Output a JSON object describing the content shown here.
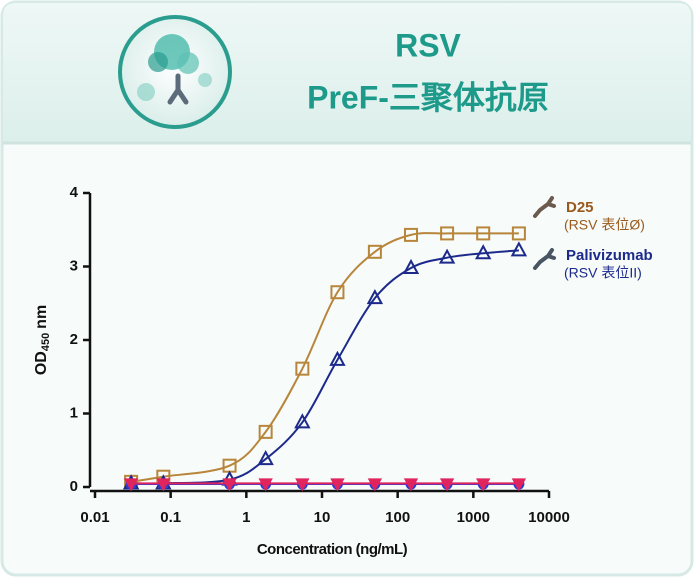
{
  "header": {
    "title": "RSV",
    "subtitle": "PreF-三聚体抗原"
  },
  "chart_data": {
    "type": "line",
    "xscale": "log",
    "x_label": "Concentration (ng/mL)",
    "y_label": {
      "main": "OD",
      "sub": "450",
      "unit": "nm"
    },
    "x": [
      0.03,
      0.08,
      0.6,
      1.8,
      5.5,
      16,
      50,
      150,
      450,
      1350,
      4000
    ],
    "xlim": [
      0.01,
      10000
    ],
    "xticks": [
      0.01,
      0.1,
      1,
      10,
      100,
      1000,
      10000
    ],
    "ylim": [
      0,
      4
    ],
    "yticks": [
      0,
      1,
      2,
      3,
      4
    ],
    "series": [
      {
        "name": "D25",
        "note": "(RSV 表位Ø)",
        "color": "#b8863b",
        "marker": "square",
        "values": [
          0.07,
          0.14,
          0.29,
          0.75,
          1.61,
          2.65,
          3.2,
          3.43,
          3.45,
          3.45,
          3.45
        ]
      },
      {
        "name": "Palivizumab",
        "note": "(RSV 表位II)",
        "color": "#1c2a8c",
        "marker": "triangle",
        "values": [
          0.05,
          0.05,
          0.1,
          0.38,
          0.88,
          1.73,
          2.57,
          2.98,
          3.12,
          3.18,
          3.22
        ]
      },
      {
        "color": "#2a3bd6",
        "marker": "circle",
        "values": [
          0.04,
          0.04,
          0.04,
          0.04,
          0.04,
          0.04,
          0.04,
          0.04,
          0.04,
          0.04,
          0.04
        ]
      },
      {
        "color": "#e0245e",
        "marker": "triangle-down",
        "values": [
          0.05,
          0.05,
          0.05,
          0.05,
          0.05,
          0.05,
          0.05,
          0.05,
          0.05,
          0.05,
          0.05
        ]
      }
    ]
  }
}
